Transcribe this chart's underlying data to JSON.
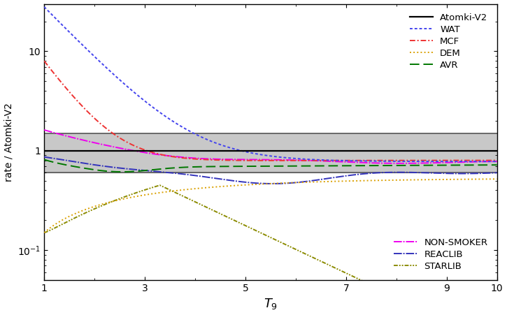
{
  "xlim": [
    1,
    10
  ],
  "ylim": [
    0.05,
    30
  ],
  "xlabel": "$T_9$",
  "ylabel": "rate / Atomki-V2",
  "shading_band": [
    0.6,
    1.5
  ],
  "background_color": "#ffffff",
  "gray_band_color": "#c8c8c8",
  "band_line_color": "#555555"
}
